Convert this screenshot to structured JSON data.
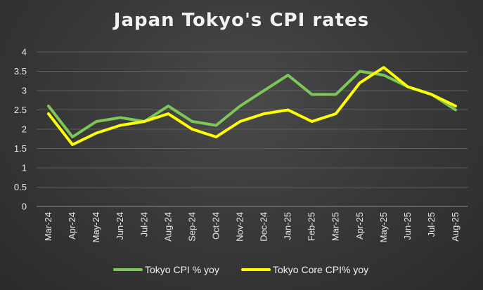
{
  "chart_data": {
    "type": "line",
    "title": "Japan Tokyo's CPI rates",
    "xlabel": "",
    "ylabel": "",
    "ylim": [
      0,
      4
    ],
    "yticks": [
      "0",
      "0.5",
      "1",
      "1.5",
      "2",
      "2.5",
      "3",
      "3.5",
      "4"
    ],
    "grid": true,
    "legend_position": "bottom",
    "categories": [
      "Mar-24",
      "Apr-24",
      "May-24",
      "Jun-24",
      "Jul-24",
      "Aug-24",
      "Sep-24",
      "Oct-24",
      "Nov-24",
      "Dec-24",
      "Jan-25",
      "Feb-25",
      "Mar-25",
      "Apr-25",
      "May-25",
      "Jun-25",
      "Jul-25",
      "Aug-25"
    ],
    "series": [
      {
        "name": "Tokyo CPI % yoy",
        "color": "#7dc757",
        "values": [
          2.6,
          1.8,
          2.2,
          2.3,
          2.2,
          2.6,
          2.2,
          2.1,
          2.6,
          3.0,
          3.4,
          2.9,
          2.9,
          3.5,
          3.4,
          3.1,
          2.9,
          2.5
        ]
      },
      {
        "name": "Tokyo Core CPI% yoy",
        "color": "#ffff00",
        "values": [
          2.4,
          1.6,
          1.9,
          2.1,
          2.2,
          2.4,
          2.0,
          1.8,
          2.2,
          2.4,
          2.5,
          2.2,
          2.4,
          3.2,
          3.6,
          3.1,
          2.9,
          2.6
        ]
      }
    ]
  }
}
